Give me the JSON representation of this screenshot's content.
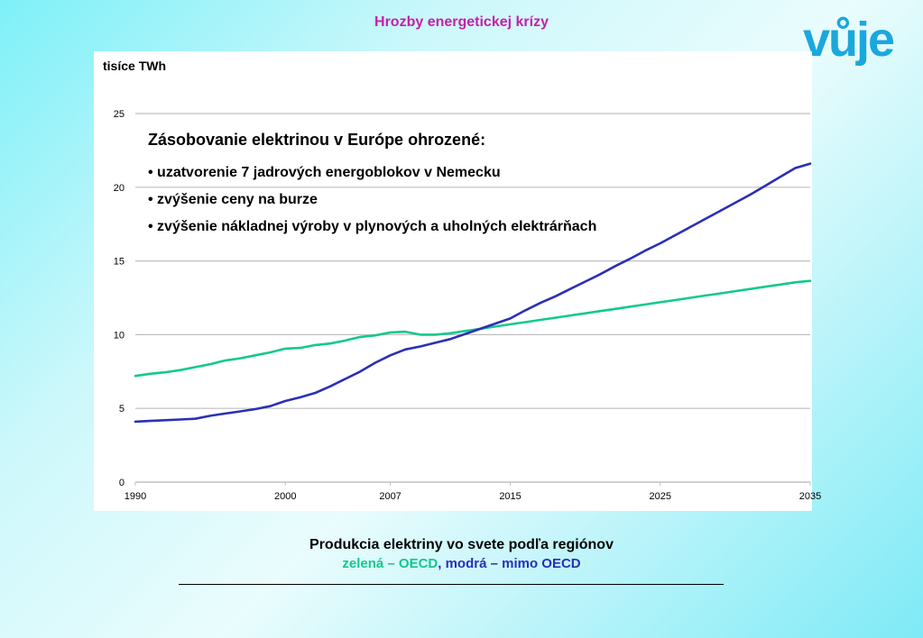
{
  "slide": {
    "title": "Hrozby energetickej krízy",
    "logo_text": "vůje",
    "caption": "Produkcia elektriny vo svete podľa regiónov",
    "legend_green": "zelená – OECD",
    "legend_sep": ", ",
    "legend_blue": "modrá – mimo OECD"
  },
  "colors": {
    "title": "#c81ea8",
    "logo": "#1aa8dc",
    "oecd": "#12c98d",
    "non_oecd": "#2b2fb6",
    "grid": "#bfbfbf"
  },
  "annotation": {
    "heading": "Zásobovanie elektrinou v Európe ohrozené:",
    "bullets": [
      "• uzatvorenie 7 jadrových energoblokov v Nemecku",
      "• zvýšenie ceny na burze",
      "• zvýšenie nákladnej výroby v plynových a uholných elektrárňach"
    ]
  },
  "chart_data": {
    "type": "line",
    "ylabel": "tisíce TWh",
    "xlabel": "",
    "xlim": [
      1990,
      2035
    ],
    "ylim": [
      0,
      25
    ],
    "yticks": [
      0,
      5,
      10,
      15,
      20,
      25
    ],
    "xticks": [
      1990,
      2000,
      2007,
      2015,
      2025,
      2035
    ],
    "grid": true,
    "series": [
      {
        "name": "OECD",
        "color": "#12c98d",
        "x": [
          1990,
          1991,
          1992,
          1993,
          1994,
          1995,
          1996,
          1997,
          1998,
          1999,
          2000,
          2001,
          2002,
          2003,
          2004,
          2005,
          2006,
          2007,
          2008,
          2009,
          2010,
          2011,
          2012,
          2013,
          2014,
          2015,
          2016,
          2017,
          2018,
          2019,
          2020,
          2021,
          2022,
          2023,
          2024,
          2025,
          2026,
          2027,
          2028,
          2029,
          2030,
          2031,
          2032,
          2033,
          2034,
          2035
        ],
        "values": [
          7.2,
          7.35,
          7.45,
          7.6,
          7.8,
          8.0,
          8.25,
          8.4,
          8.6,
          8.8,
          9.05,
          9.1,
          9.3,
          9.4,
          9.6,
          9.85,
          9.95,
          10.15,
          10.2,
          10.0,
          10.0,
          10.1,
          10.25,
          10.4,
          10.55,
          10.7,
          10.85,
          11.0,
          11.15,
          11.3,
          11.45,
          11.6,
          11.75,
          11.9,
          12.05,
          12.2,
          12.35,
          12.5,
          12.65,
          12.8,
          12.95,
          13.1,
          13.25,
          13.4,
          13.55,
          13.65
        ]
      },
      {
        "name": "mimo OECD",
        "color": "#2b2fb6",
        "x": [
          1990,
          1991,
          1992,
          1993,
          1994,
          1995,
          1996,
          1997,
          1998,
          1999,
          2000,
          2001,
          2002,
          2003,
          2004,
          2005,
          2006,
          2007,
          2008,
          2009,
          2010,
          2011,
          2012,
          2013,
          2014,
          2015,
          2016,
          2017,
          2018,
          2019,
          2020,
          2021,
          2022,
          2023,
          2024,
          2025,
          2026,
          2027,
          2028,
          2029,
          2030,
          2031,
          2032,
          2033,
          2034,
          2035
        ],
        "values": [
          4.1,
          4.15,
          4.2,
          4.25,
          4.3,
          4.5,
          4.65,
          4.8,
          4.95,
          5.15,
          5.5,
          5.75,
          6.05,
          6.5,
          7.0,
          7.5,
          8.1,
          8.6,
          9.0,
          9.2,
          9.45,
          9.7,
          10.05,
          10.4,
          10.75,
          11.1,
          11.65,
          12.15,
          12.6,
          13.1,
          13.6,
          14.1,
          14.65,
          15.15,
          15.7,
          16.2,
          16.75,
          17.3,
          17.85,
          18.4,
          18.95,
          19.5,
          20.1,
          20.7,
          21.3,
          21.6
        ]
      }
    ]
  }
}
